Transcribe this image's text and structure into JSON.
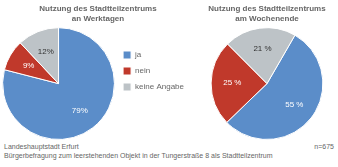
{
  "chart_data": [
    {
      "type": "pie",
      "title": "Nutzung des Stadtteilzentrums\nan Werktagen",
      "categories": [
        "ja",
        "nein",
        "keine Angabe"
      ],
      "values": [
        79,
        9,
        12
      ],
      "value_labels": [
        "79%",
        "9%",
        "12%"
      ],
      "colors": [
        "#5b8dc9",
        "#c0392b",
        "#bdc3c7"
      ],
      "data_labels": true,
      "legend": "right",
      "annotations": [
        "Landeshauptstadt Erfurt",
        "Bürgerbefragung zum leerstehenden Objekt in der Tungerstraße 8 als Stadtteilzentrum",
        "n=675"
      ]
    },
    {
      "type": "pie",
      "title": "Nutzung des Stadtteilzentrums\nam Wochenende",
      "categories": [
        "ja",
        "nein",
        "keine Angabe"
      ],
      "values": [
        55,
        25,
        21
      ],
      "value_labels": [
        "55 %",
        "25 %",
        "21 %"
      ],
      "colors": [
        "#5b8dc9",
        "#c0392b",
        "#bdc3c7"
      ],
      "data_labels": true
    }
  ]
}
